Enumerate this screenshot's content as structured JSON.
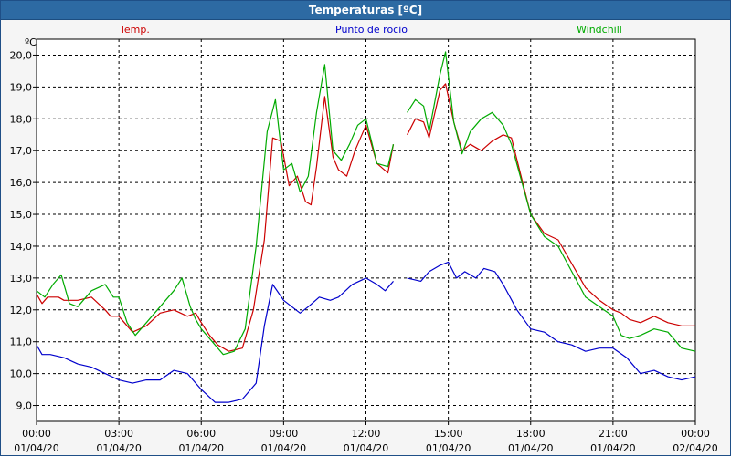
{
  "window": {
    "title": "Temperaturas [ºC]"
  },
  "chart_data": {
    "type": "line",
    "title": "Temperaturas [ºC]",
    "ylabel": "ºC",
    "xlabel": "",
    "ylim": [
      8.5,
      20.5
    ],
    "y_ticks": [
      "20,0",
      "19,0",
      "18,0",
      "17,0",
      "16,0",
      "15,0",
      "14,0",
      "13,0",
      "12,0",
      "11,0",
      "10,0",
      "9,0"
    ],
    "y_tick_values": [
      20,
      19,
      18,
      17,
      16,
      15,
      14,
      13,
      12,
      11,
      10,
      9
    ],
    "x_unit": "hours",
    "xlim": [
      0,
      24
    ],
    "x_ticks": [
      {
        "time": "00:00",
        "date": "01/04/20"
      },
      {
        "time": "03:00",
        "date": "01/04/20"
      },
      {
        "time": "06:00",
        "date": "01/04/20"
      },
      {
        "time": "09:00",
        "date": "01/04/20"
      },
      {
        "time": "12:00",
        "date": "01/04/20"
      },
      {
        "time": "15:00",
        "date": "01/04/20"
      },
      {
        "time": "18:00",
        "date": "01/04/20"
      },
      {
        "time": "21:00",
        "date": "01/04/20"
      },
      {
        "time": "00:00",
        "date": "02/04/20"
      }
    ],
    "x_tick_values": [
      0,
      3,
      6,
      9,
      12,
      15,
      18,
      21,
      24
    ],
    "grid": true,
    "legend": "top",
    "series": [
      {
        "name": "Temp.",
        "color": "#cc0000",
        "x": [
          0,
          0.2,
          0.4,
          0.8,
          1.0,
          1.5,
          2.0,
          2.5,
          2.7,
          3.0,
          3.5,
          4.0,
          4.5,
          5.0,
          5.5,
          5.8,
          6.0,
          6.3,
          6.6,
          7.0,
          7.5,
          7.9,
          8.3,
          8.6,
          8.9,
          9.2,
          9.5,
          9.8,
          10.0,
          10.2,
          10.5,
          10.8,
          11.0,
          11.3,
          11.6,
          12.0,
          12.4,
          12.8,
          13.0,
          null,
          13.5,
          13.8,
          14.1,
          14.3,
          14.7,
          14.9,
          15.2,
          15.5,
          15.8,
          16.2,
          16.6,
          17.0,
          17.3,
          18.0,
          18.5,
          19.0,
          20.0,
          20.5,
          21.0,
          21.3,
          21.6,
          22.0,
          22.5,
          23.0,
          23.5,
          24.0
        ],
        "y": [
          12.5,
          12.2,
          12.4,
          12.4,
          12.3,
          12.3,
          12.4,
          12.0,
          11.8,
          11.8,
          11.3,
          11.5,
          11.9,
          12.0,
          11.8,
          11.9,
          11.6,
          11.2,
          10.9,
          10.7,
          10.8,
          12.0,
          14.2,
          17.4,
          17.3,
          15.9,
          16.2,
          15.4,
          15.3,
          16.5,
          18.7,
          16.8,
          16.4,
          16.2,
          17.0,
          17.8,
          16.6,
          16.3,
          17.2,
          null,
          17.5,
          18.0,
          17.9,
          17.4,
          18.9,
          19.1,
          17.9,
          17.0,
          17.2,
          17.0,
          17.3,
          17.5,
          17.4,
          15.0,
          14.4,
          14.2,
          12.7,
          12.3,
          12.0,
          11.9,
          11.7,
          11.6,
          11.8,
          11.6,
          11.5,
          11.5
        ]
      },
      {
        "name": "Punto de rocio",
        "color": "#0000cc",
        "x": [
          0,
          0.2,
          0.5,
          1.0,
          1.5,
          2.0,
          2.5,
          3.0,
          3.5,
          4.0,
          4.5,
          5.0,
          5.5,
          5.8,
          6.0,
          6.5,
          7.0,
          7.5,
          8.0,
          8.3,
          8.6,
          9.0,
          9.3,
          9.6,
          9.9,
          10.3,
          10.7,
          11.0,
          11.5,
          12.0,
          12.4,
          12.7,
          13.0,
          null,
          13.5,
          14.0,
          14.3,
          14.7,
          15.0,
          15.3,
          15.6,
          16.0,
          16.3,
          16.7,
          17.0,
          17.5,
          18.0,
          18.5,
          19.0,
          19.5,
          20.0,
          20.5,
          21.0,
          21.5,
          22.0,
          22.5,
          23.0,
          23.5,
          24.0
        ],
        "y": [
          10.9,
          10.6,
          10.6,
          10.5,
          10.3,
          10.2,
          10.0,
          9.8,
          9.7,
          9.8,
          9.8,
          10.1,
          10.0,
          9.7,
          9.5,
          9.1,
          9.1,
          9.2,
          9.7,
          11.5,
          12.8,
          12.3,
          12.1,
          11.9,
          12.1,
          12.4,
          12.3,
          12.4,
          12.8,
          13.0,
          12.8,
          12.6,
          12.9,
          null,
          13.0,
          12.9,
          13.2,
          13.4,
          13.5,
          13.0,
          13.2,
          13.0,
          13.3,
          13.2,
          12.8,
          12.0,
          11.4,
          11.3,
          11.0,
          10.9,
          10.7,
          10.8,
          10.8,
          10.5,
          10.0,
          10.1,
          9.9,
          9.8,
          9.9
        ]
      },
      {
        "name": "Windchill",
        "color": "#00aa00",
        "x": [
          0,
          0.3,
          0.6,
          0.9,
          1.2,
          1.5,
          2.0,
          2.5,
          2.8,
          3.0,
          3.3,
          3.6,
          4.0,
          4.5,
          5.0,
          5.3,
          5.6,
          5.8,
          6.0,
          6.4,
          6.8,
          7.2,
          7.6,
          8.0,
          8.4,
          8.7,
          9.0,
          9.3,
          9.6,
          9.9,
          10.2,
          10.5,
          10.8,
          11.1,
          11.4,
          11.7,
          12.0,
          12.4,
          12.8,
          13.0,
          null,
          13.5,
          13.8,
          14.1,
          14.3,
          14.7,
          14.9,
          15.2,
          15.5,
          15.8,
          16.2,
          16.6,
          17.0,
          17.3,
          18.0,
          18.5,
          19.0,
          19.5,
          20.0,
          20.5,
          21.0,
          21.3,
          21.6,
          22.0,
          22.5,
          23.0,
          23.5,
          24.0
        ],
        "y": [
          12.6,
          12.4,
          12.8,
          13.1,
          12.2,
          12.1,
          12.6,
          12.8,
          12.4,
          12.4,
          11.6,
          11.2,
          11.6,
          12.1,
          12.6,
          13.0,
          12.1,
          11.7,
          11.4,
          11.0,
          10.6,
          10.7,
          11.4,
          14.0,
          17.6,
          18.6,
          16.4,
          16.6,
          15.7,
          16.2,
          18.2,
          19.7,
          17.0,
          16.7,
          17.2,
          17.8,
          18.0,
          16.6,
          16.5,
          17.2,
          null,
          18.2,
          18.6,
          18.4,
          17.6,
          19.4,
          20.1,
          17.9,
          16.9,
          17.6,
          18.0,
          18.2,
          17.8,
          17.2,
          15.0,
          14.3,
          14.0,
          13.2,
          12.4,
          12.1,
          11.8,
          11.2,
          11.1,
          11.2,
          11.4,
          11.3,
          10.8,
          10.7
        ]
      }
    ]
  }
}
